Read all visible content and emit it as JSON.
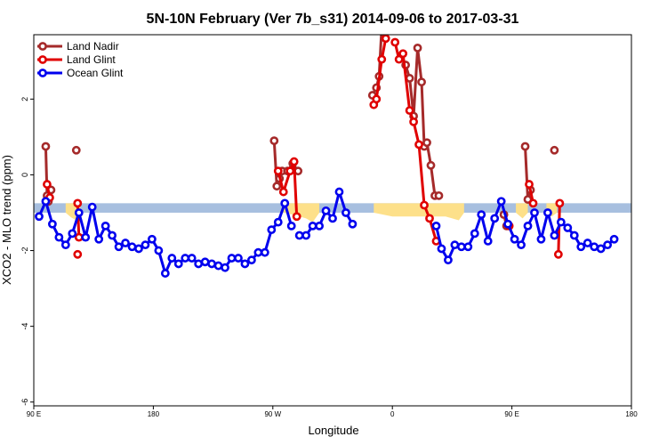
{
  "chart_data": {
    "type": "line",
    "title": "5N-10N February (Ver 7b_s31)   2014-09-06 to 2017-03-31",
    "xlabel": "Longitude",
    "ylabel": "XCO2 - MLO trend (ppm)",
    "xlim": [
      90,
      540
    ],
    "ylim": [
      -6.1,
      3.7
    ],
    "yticks": [
      -6,
      -4,
      -2,
      0,
      2
    ],
    "xticks": [
      {
        "value": 90,
        "label": "90 E"
      },
      {
        "value": 180,
        "label": "180"
      },
      {
        "value": 270,
        "label": "90 W"
      },
      {
        "value": 360,
        "label": "0"
      },
      {
        "value": 450,
        "label": "90 E"
      },
      {
        "value": 540,
        "label": "180"
      }
    ],
    "legend_position": "top-left",
    "reference_band": {
      "ymin": -1.0,
      "ymax": -0.75,
      "color": "#a7bfdf",
      "highlight_color": "#fde08a"
    },
    "highlight_regions": [
      {
        "x": [
          114,
          118,
          122,
          125
        ],
        "ymin": [
          -1.0,
          -1.12,
          -1.2,
          -1.0
        ]
      },
      {
        "x": [
          278,
          285,
          295,
          300,
          305
        ],
        "ymin": [
          -1.0,
          -1.05,
          -1.15,
          -1.25,
          -1.0
        ]
      },
      {
        "x": [
          346,
          360,
          380,
          400,
          410,
          414
        ],
        "ymin": [
          -1.0,
          -1.1,
          -1.1,
          -1.1,
          -1.2,
          -1.0
        ]
      },
      {
        "x": [
          453,
          458,
          462
        ],
        "ymin": [
          -1.0,
          -1.15,
          -1.0
        ]
      },
      {
        "x": [
          476,
          480,
          484
        ],
        "ymin": [
          -1.0,
          -1.1,
          -1.0
        ]
      }
    ],
    "series": [
      {
        "name": "Land Nadir",
        "color": "#a52a2a",
        "segments": [
          [
            [
              99,
              0.75
            ],
            [
              100,
              -0.55
            ],
            [
              101,
              -0.7
            ],
            [
              103,
              -0.4
            ]
          ],
          [
            [
              122,
              0.65
            ]
          ],
          [
            [
              271,
              0.9
            ],
            [
              273,
              -0.3
            ],
            [
              275,
              -0.1
            ],
            [
              277,
              0.1
            ],
            [
              281,
              0.1
            ],
            [
              285,
              0.3
            ],
            [
              289,
              0.1
            ]
          ],
          [
            [
              345,
              2.1
            ],
            [
              348,
              2.3
            ],
            [
              350,
              2.6
            ],
            [
              352,
              3.9
            ]
          ],
          [
            [
              370,
              2.9
            ],
            [
              373,
              2.55
            ],
            [
              376,
              1.55
            ],
            [
              379,
              3.35
            ],
            [
              382,
              2.45
            ],
            [
              384,
              0.75
            ],
            [
              386,
              0.85
            ],
            [
              389,
              0.25
            ],
            [
              392,
              -0.55
            ],
            [
              395,
              -0.55
            ]
          ],
          [
            [
              444,
              -1.05
            ],
            [
              446,
              -1.35
            ]
          ],
          [
            [
              460,
              0.75
            ],
            [
              462,
              -0.65
            ],
            [
              464,
              -0.4
            ]
          ],
          [
            [
              482,
              0.65
            ]
          ]
        ]
      },
      {
        "name": "Land Glint",
        "color": "#e00000",
        "segments": [
          [
            [
              100,
              -0.25
            ],
            [
              102,
              -0.6
            ]
          ],
          [
            [
              123,
              -0.75
            ],
            [
              124,
              -1.65
            ]
          ],
          [
            [
              274,
              0.1
            ],
            [
              278,
              -0.45
            ],
            [
              283,
              0.1
            ],
            [
              286,
              0.35
            ],
            [
              288,
              -1.1
            ]
          ],
          [
            [
              346,
              1.85
            ],
            [
              348,
              2.0
            ],
            [
              352,
              3.05
            ],
            [
              355,
              3.6
            ],
            [
              358,
              3.9
            ]
          ],
          [
            [
              362,
              3.5
            ],
            [
              365,
              3.05
            ],
            [
              368,
              3.2
            ],
            [
              373,
              1.7
            ],
            [
              376,
              1.4
            ],
            [
              380,
              0.8
            ],
            [
              384,
              -0.8
            ],
            [
              388,
              -1.15
            ],
            [
              393,
              -1.75
            ]
          ],
          [
            [
              448,
              -1.35
            ]
          ],
          [
            [
              463,
              -0.25
            ],
            [
              466,
              -0.75
            ]
          ],
          [
            [
              485,
              -2.1
            ],
            [
              486,
              -0.75
            ]
          ],
          [
            [
              123,
              -2.1
            ]
          ]
        ]
      },
      {
        "name": "Ocean Glint",
        "color": "#0000ee",
        "segments": [
          [
            [
              94,
              -1.1
            ],
            [
              99,
              -0.7
            ],
            [
              104,
              -1.3
            ],
            [
              109,
              -1.65
            ],
            [
              114,
              -1.85
            ],
            [
              119,
              -1.55
            ],
            [
              124,
              -1.0
            ],
            [
              129,
              -1.65
            ],
            [
              134,
              -0.85
            ],
            [
              139,
              -1.7
            ],
            [
              144,
              -1.35
            ],
            [
              149,
              -1.6
            ],
            [
              154,
              -1.9
            ],
            [
              159,
              -1.8
            ],
            [
              164,
              -1.9
            ],
            [
              169,
              -1.95
            ],
            [
              174,
              -1.85
            ],
            [
              179,
              -1.7
            ],
            [
              184,
              -2.0
            ],
            [
              189,
              -2.6
            ],
            [
              194,
              -2.2
            ],
            [
              199,
              -2.35
            ],
            [
              204,
              -2.2
            ],
            [
              209,
              -2.2
            ],
            [
              214,
              -2.35
            ],
            [
              219,
              -2.3
            ],
            [
              224,
              -2.35
            ],
            [
              229,
              -2.4
            ],
            [
              234,
              -2.45
            ],
            [
              239,
              -2.2
            ],
            [
              244,
              -2.2
            ],
            [
              249,
              -2.35
            ],
            [
              254,
              -2.25
            ],
            [
              259,
              -2.05
            ],
            [
              264,
              -2.05
            ],
            [
              269,
              -1.45
            ],
            [
              274,
              -1.25
            ],
            [
              279,
              -0.75
            ],
            [
              284,
              -1.35
            ]
          ],
          [
            [
              290,
              -1.6
            ],
            [
              295,
              -1.6
            ],
            [
              300,
              -1.35
            ],
            [
              305,
              -1.35
            ],
            [
              310,
              -0.95
            ],
            [
              315,
              -1.15
            ],
            [
              320,
              -0.45
            ],
            [
              325,
              -1.0
            ],
            [
              330,
              -1.3
            ]
          ],
          [
            [
              393,
              -1.35
            ],
            [
              397,
              -1.95
            ],
            [
              402,
              -2.25
            ],
            [
              407,
              -1.85
            ],
            [
              412,
              -1.9
            ],
            [
              417,
              -1.9
            ],
            [
              422,
              -1.55
            ],
            [
              427,
              -1.05
            ],
            [
              432,
              -1.75
            ],
            [
              437,
              -1.15
            ],
            [
              442,
              -0.7
            ],
            [
              447,
              -1.3
            ],
            [
              452,
              -1.7
            ],
            [
              457,
              -1.85
            ],
            [
              462,
              -1.35
            ],
            [
              467,
              -1.0
            ],
            [
              472,
              -1.7
            ],
            [
              477,
              -1.0
            ],
            [
              482,
              -1.6
            ],
            [
              487,
              -1.25
            ],
            [
              492,
              -1.4
            ],
            [
              497,
              -1.6
            ],
            [
              502,
              -1.9
            ],
            [
              507,
              -1.8
            ],
            [
              512,
              -1.9
            ],
            [
              517,
              -1.95
            ],
            [
              522,
              -1.85
            ],
            [
              527,
              -1.7
            ]
          ]
        ]
      }
    ]
  }
}
